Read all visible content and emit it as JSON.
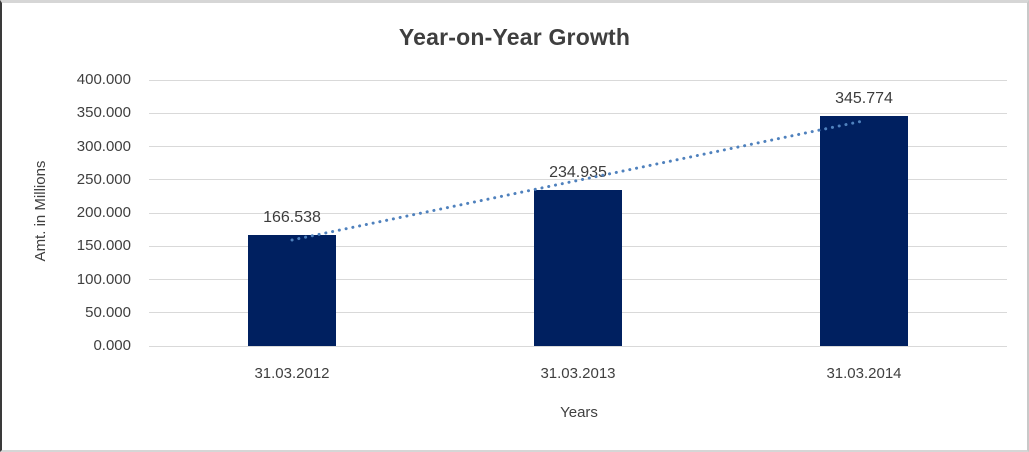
{
  "chart_data": {
    "type": "bar",
    "title": "Year-on-Year Growth",
    "categories": [
      "31.03.2012",
      "31.03.2013",
      "31.03.2014"
    ],
    "values": [
      166.538,
      234.935,
      345.774
    ],
    "data_labels": [
      "166.538",
      "234.935",
      "345.774"
    ],
    "xlabel": "Years",
    "ylabel": "Amt. in Millions",
    "ylim": [
      0,
      400
    ],
    "ytick_step": 50,
    "ytick_labels": [
      "0.000",
      "50.000",
      "100.000",
      "150.000",
      "200.000",
      "250.000",
      "300.000",
      "350.000",
      "400.000"
    ],
    "grid": true,
    "legend": false,
    "bar_color": "#002060",
    "gridline_color": "#d9d9d9",
    "trendline": {
      "type": "linear",
      "style": "dotted",
      "color": "#4f81bd"
    }
  }
}
